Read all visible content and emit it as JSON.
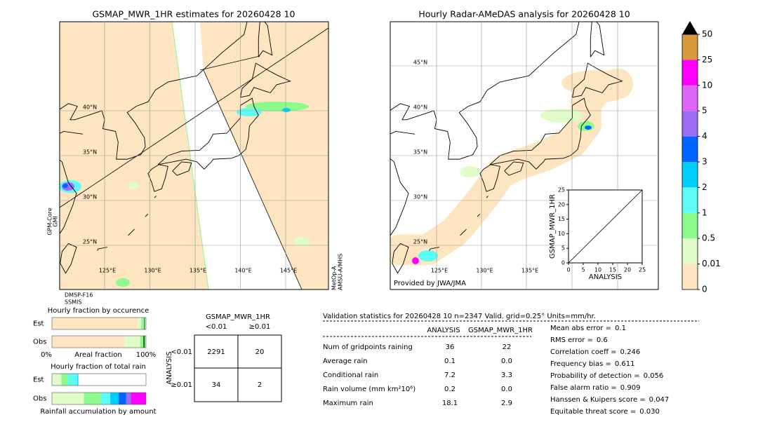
{
  "left_map": {
    "title": "GSMAP_MWR_1HR estimates for 20260428 10",
    "lat_labels": [
      "40°N",
      "35°N",
      "30°N",
      "25°N"
    ],
    "lon_labels": [
      "125°E",
      "130°E",
      "135°E",
      "140°E",
      "145°E"
    ],
    "sensor_left": [
      "GPM-Core",
      "GMI"
    ],
    "sensor_bottom": [
      "DMSP-F16",
      "SSMIS"
    ],
    "sensor_right": [
      "MetOp-A",
      "AMSU-A/MHS"
    ]
  },
  "right_map": {
    "title": "Hourly Radar-AMeDAS analysis for 20260428 10",
    "lat_labels": [
      "45°N",
      "40°N",
      "35°N",
      "30°N",
      "25°N"
    ],
    "lon_labels": [
      "125°E",
      "130°E",
      "135°E"
    ],
    "credit": "Provided by JWA/JMA"
  },
  "colorbar": {
    "ticks": [
      0,
      0.01,
      0.5,
      1,
      2,
      3,
      4,
      5,
      10,
      25,
      50
    ],
    "colors": [
      "#fce5c0",
      "#e0fcc8",
      "#8dfa8d",
      "#5efbf6",
      "#00cefa",
      "#0064ff",
      "#9a6cf6",
      "#dd66f8",
      "#ff00ff",
      "#d89a3c"
    ],
    "extend_color": "#000000"
  },
  "scatter": {
    "xlabel": "ANALYSIS",
    "ylabel": "GSMAP_MWR_1HR",
    "xlim": [
      0,
      25
    ],
    "ylim": [
      0,
      25
    ],
    "xticks": [
      0,
      5,
      10,
      15,
      20,
      25
    ],
    "yticks": [
      0,
      5,
      10,
      15,
      20,
      25
    ]
  },
  "occurrence": {
    "type": "bar",
    "title": "Hourly fraction by occurence",
    "rows": [
      "Est",
      "Obs"
    ],
    "xlabel": "Areal fraction",
    "xtick_labels": [
      "0%",
      "100%"
    ],
    "colors": [
      "#fce5c0",
      "#e0fcc8",
      "#8dfa8d",
      "#1a8a1a"
    ],
    "series": [
      [
        91,
        4,
        3,
        1
      ],
      [
        77,
        17,
        3,
        2
      ]
    ]
  },
  "total": {
    "type": "bar",
    "title": "Hourly fraction of total rain",
    "rows": [
      "Est",
      "Obs"
    ],
    "xlabel": "Rainfall accumulation by amount",
    "colors": [
      "#e0fcc8",
      "#8dfa8d",
      "#5efbf6",
      "#00cefa",
      "#0064ff",
      "#9a6cf6",
      "#ff00ff"
    ],
    "series": [
      [
        10,
        7,
        10,
        1
      ],
      [
        34,
        18,
        10,
        9,
        8,
        5,
        16
      ]
    ]
  },
  "contingency": {
    "title": "GSMAP_MWR_1HR",
    "columns": [
      "<0.01",
      "≥0.01"
    ],
    "row_title": "ANALYSIS",
    "rows": [
      "<0.01",
      "≥0.01"
    ],
    "cells": [
      [
        "2291",
        "20"
      ],
      [
        "34",
        "2"
      ]
    ]
  },
  "validation": {
    "header": "Validation statistics for 20260428 10  n=2347 Valid. grid=0.25° Units=mm/hr.",
    "columns": [
      "ANALYSIS",
      "GSMAP_MWR_1HR"
    ],
    "rows": [
      [
        "Num of gridpoints raining",
        "36",
        "22"
      ],
      [
        "Average rain",
        "0.1",
        "0.0"
      ],
      [
        "Conditional rain",
        "7.2",
        "3.3"
      ],
      [
        "Rain volume (mm km²10⁶)",
        "0.2",
        "0.0"
      ],
      [
        "Maximum rain",
        "18.1",
        "2.9"
      ]
    ],
    "scores": [
      [
        "Mean abs error =",
        "0.1"
      ],
      [
        "RMS error =",
        "0.6"
      ],
      [
        "Correlation coeff =",
        "0.246"
      ],
      [
        "Frequency bias =",
        "0.611"
      ],
      [
        "Probability of detection =",
        "0.056"
      ],
      [
        "False alarm ratio =",
        "0.909"
      ],
      [
        "Hanssen & Kuipers score =",
        "0.047"
      ],
      [
        "Equitable threat score =",
        "0.030"
      ]
    ]
  }
}
